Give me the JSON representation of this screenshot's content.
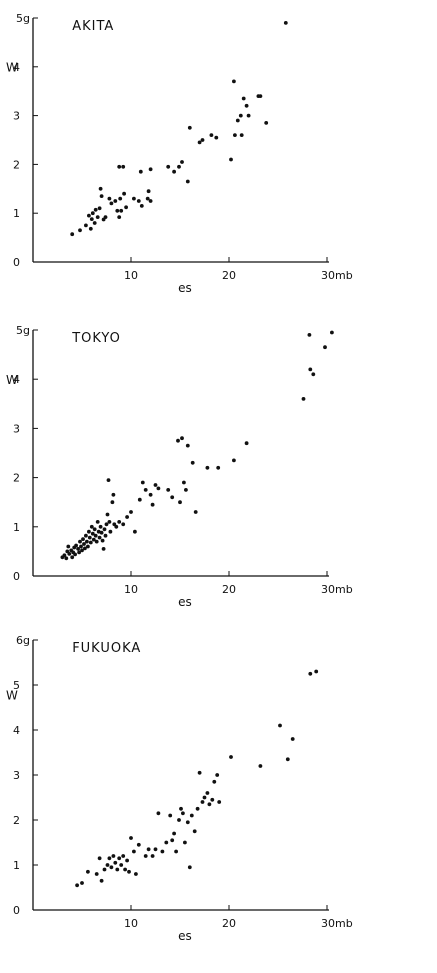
{
  "chart_data": [
    {
      "type": "scatter",
      "title": "AKITA",
      "xlabel": "es",
      "ylabel": "W",
      "xlim": [
        0,
        30
      ],
      "ylim": [
        0,
        5
      ],
      "x_ticks": [
        "10",
        "20"
      ],
      "x_end_label": "30mb",
      "y_ticks": [
        "0",
        "1",
        "2",
        "3",
        "4"
      ],
      "y_top_label": "5g",
      "points": [
        [
          4.0,
          0.57
        ],
        [
          4.8,
          0.65
        ],
        [
          5.4,
          0.75
        ],
        [
          5.7,
          0.95
        ],
        [
          5.9,
          0.68
        ],
        [
          6.0,
          0.88
        ],
        [
          6.1,
          1.0
        ],
        [
          6.3,
          0.8
        ],
        [
          6.4,
          1.07
        ],
        [
          6.6,
          0.92
        ],
        [
          6.8,
          1.1
        ],
        [
          6.9,
          1.5
        ],
        [
          7.0,
          1.35
        ],
        [
          7.2,
          0.87
        ],
        [
          7.4,
          0.92
        ],
        [
          7.8,
          1.3
        ],
        [
          8.0,
          1.2
        ],
        [
          8.4,
          1.25
        ],
        [
          8.6,
          1.05
        ],
        [
          8.8,
          0.92
        ],
        [
          8.8,
          1.95
        ],
        [
          8.9,
          1.3
        ],
        [
          9.0,
          1.05
        ],
        [
          9.2,
          1.95
        ],
        [
          9.3,
          1.4
        ],
        [
          9.5,
          1.12
        ],
        [
          10.3,
          1.3
        ],
        [
          10.8,
          1.25
        ],
        [
          11.0,
          1.85
        ],
        [
          11.1,
          1.15
        ],
        [
          11.7,
          1.3
        ],
        [
          11.8,
          1.45
        ],
        [
          12.0,
          1.9
        ],
        [
          12.0,
          1.25
        ],
        [
          13.8,
          1.95
        ],
        [
          14.4,
          1.85
        ],
        [
          14.9,
          1.95
        ],
        [
          15.2,
          2.05
        ],
        [
          15.8,
          1.65
        ],
        [
          16.0,
          2.75
        ],
        [
          17.0,
          2.45
        ],
        [
          17.3,
          2.5
        ],
        [
          18.2,
          2.6
        ],
        [
          18.7,
          2.55
        ],
        [
          20.2,
          2.1
        ],
        [
          20.5,
          3.7
        ],
        [
          20.6,
          2.6
        ],
        [
          20.9,
          2.9
        ],
        [
          21.2,
          3.0
        ],
        [
          21.3,
          2.6
        ],
        [
          21.5,
          3.35
        ],
        [
          21.8,
          3.2
        ],
        [
          22.0,
          3.0
        ],
        [
          23.0,
          3.4
        ],
        [
          23.2,
          3.4
        ],
        [
          23.8,
          2.85
        ],
        [
          25.8,
          4.9
        ]
      ]
    },
    {
      "type": "scatter",
      "title": "TOKYO",
      "xlabel": "es",
      "ylabel": "W",
      "xlim": [
        0,
        30
      ],
      "ylim": [
        0,
        5
      ],
      "x_ticks": [
        "10",
        "20"
      ],
      "x_end_label": "30mb",
      "y_ticks": [
        "0",
        "1",
        "2",
        "3",
        "4"
      ],
      "y_top_label": "5g",
      "points": [
        [
          3.0,
          0.38
        ],
        [
          3.2,
          0.42
        ],
        [
          3.4,
          0.36
        ],
        [
          3.5,
          0.5
        ],
        [
          3.6,
          0.6
        ],
        [
          3.7,
          0.45
        ],
        [
          3.9,
          0.52
        ],
        [
          4.0,
          0.38
        ],
        [
          4.1,
          0.48
        ],
        [
          4.2,
          0.58
        ],
        [
          4.3,
          0.44
        ],
        [
          4.4,
          0.62
        ],
        [
          4.6,
          0.55
        ],
        [
          4.7,
          0.48
        ],
        [
          4.8,
          0.7
        ],
        [
          4.9,
          0.6
        ],
        [
          5.0,
          0.52
        ],
        [
          5.1,
          0.75
        ],
        [
          5.2,
          0.65
        ],
        [
          5.3,
          0.56
        ],
        [
          5.4,
          0.82
        ],
        [
          5.5,
          0.7
        ],
        [
          5.6,
          0.6
        ],
        [
          5.7,
          0.9
        ],
        [
          5.8,
          0.78
        ],
        [
          5.9,
          0.68
        ],
        [
          6.0,
          1.0
        ],
        [
          6.1,
          0.86
        ],
        [
          6.2,
          0.74
        ],
        [
          6.3,
          0.95
        ],
        [
          6.4,
          0.82
        ],
        [
          6.5,
          0.7
        ],
        [
          6.6,
          1.1
        ],
        [
          6.7,
          0.9
        ],
        [
          6.8,
          0.78
        ],
        [
          6.9,
          1.0
        ],
        [
          7.0,
          0.88
        ],
        [
          7.1,
          0.72
        ],
        [
          7.2,
          0.55
        ],
        [
          7.3,
          0.95
        ],
        [
          7.4,
          0.82
        ],
        [
          7.5,
          1.05
        ],
        [
          7.6,
          1.25
        ],
        [
          7.7,
          1.95
        ],
        [
          7.8,
          1.1
        ],
        [
          7.9,
          0.9
        ],
        [
          8.1,
          1.5
        ],
        [
          8.2,
          1.65
        ],
        [
          8.3,
          1.05
        ],
        [
          8.5,
          1.0
        ],
        [
          8.8,
          1.1
        ],
        [
          9.2,
          1.05
        ],
        [
          9.6,
          1.2
        ],
        [
          10.0,
          1.3
        ],
        [
          10.4,
          0.9
        ],
        [
          10.9,
          1.55
        ],
        [
          11.2,
          1.9
        ],
        [
          11.5,
          1.75
        ],
        [
          12.0,
          1.65
        ],
        [
          12.2,
          1.45
        ],
        [
          12.5,
          1.85
        ],
        [
          12.8,
          1.78
        ],
        [
          13.8,
          1.75
        ],
        [
          14.2,
          1.6
        ],
        [
          14.8,
          2.75
        ],
        [
          15.0,
          1.5
        ],
        [
          15.2,
          2.8
        ],
        [
          15.4,
          1.9
        ],
        [
          15.6,
          1.75
        ],
        [
          15.8,
          2.65
        ],
        [
          16.3,
          2.3
        ],
        [
          16.6,
          1.3
        ],
        [
          17.8,
          2.2
        ],
        [
          18.9,
          2.2
        ],
        [
          20.5,
          2.35
        ],
        [
          21.8,
          2.7
        ],
        [
          27.6,
          3.6
        ],
        [
          28.2,
          4.9
        ],
        [
          28.3,
          4.2
        ],
        [
          28.6,
          4.1
        ],
        [
          29.8,
          4.65
        ],
        [
          30.5,
          4.95
        ]
      ]
    },
    {
      "type": "scatter",
      "title": "FUKUOKA",
      "xlabel": "es",
      "ylabel": "W",
      "xlim": [
        0,
        30
      ],
      "ylim": [
        0,
        6
      ],
      "x_ticks": [
        "10",
        "20"
      ],
      "x_end_label": "30mb",
      "y_ticks": [
        "0",
        "1",
        "2",
        "3",
        "4",
        "5"
      ],
      "y_top_label": "6g",
      "points": [
        [
          4.5,
          0.55
        ],
        [
          5.0,
          0.6
        ],
        [
          5.6,
          0.85
        ],
        [
          6.5,
          0.8
        ],
        [
          6.8,
          1.15
        ],
        [
          7.0,
          0.65
        ],
        [
          7.3,
          0.9
        ],
        [
          7.6,
          1.0
        ],
        [
          7.8,
          1.15
        ],
        [
          8.0,
          0.95
        ],
        [
          8.2,
          1.2
        ],
        [
          8.4,
          1.05
        ],
        [
          8.6,
          0.9
        ],
        [
          8.8,
          1.15
        ],
        [
          9.0,
          1.0
        ],
        [
          9.2,
          1.2
        ],
        [
          9.4,
          0.9
        ],
        [
          9.6,
          1.1
        ],
        [
          9.8,
          0.85
        ],
        [
          10.0,
          1.6
        ],
        [
          10.3,
          1.3
        ],
        [
          10.5,
          0.8
        ],
        [
          10.8,
          1.45
        ],
        [
          11.5,
          1.2
        ],
        [
          11.8,
          1.35
        ],
        [
          12.2,
          1.2
        ],
        [
          12.5,
          1.35
        ],
        [
          12.8,
          2.15
        ],
        [
          13.2,
          1.3
        ],
        [
          13.6,
          1.5
        ],
        [
          14.0,
          2.1
        ],
        [
          14.2,
          1.55
        ],
        [
          14.4,
          1.7
        ],
        [
          14.6,
          1.3
        ],
        [
          14.9,
          2.0
        ],
        [
          15.1,
          2.25
        ],
        [
          15.3,
          2.15
        ],
        [
          15.5,
          1.5
        ],
        [
          15.8,
          1.95
        ],
        [
          16.0,
          0.95
        ],
        [
          16.2,
          2.1
        ],
        [
          16.5,
          1.75
        ],
        [
          16.8,
          2.25
        ],
        [
          17.0,
          3.05
        ],
        [
          17.3,
          2.4
        ],
        [
          17.5,
          2.5
        ],
        [
          17.8,
          2.6
        ],
        [
          18.0,
          2.35
        ],
        [
          18.3,
          2.45
        ],
        [
          18.5,
          2.85
        ],
        [
          18.8,
          3.0
        ],
        [
          19.0,
          2.4
        ],
        [
          20.2,
          3.4
        ],
        [
          23.2,
          3.2
        ],
        [
          25.2,
          4.1
        ],
        [
          26.0,
          3.35
        ],
        [
          26.5,
          3.8
        ],
        [
          28.3,
          5.25
        ],
        [
          28.9,
          5.3
        ]
      ]
    }
  ]
}
